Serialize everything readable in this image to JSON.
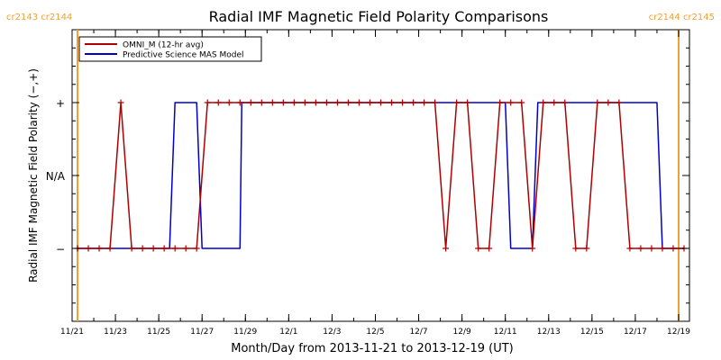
{
  "chart_data": {
    "type": "line",
    "title": "Radial IMF Magnetic Field Polarity Comparisons",
    "xlabel": "Month/Day from 2013-11-21 to 2013-12-19 (UT)",
    "ylabel": "Radial IMF Magnetic Field Polarity (−,+)",
    "xlim": [
      "2013-11-21T00:00",
      "2013-12-19T12:00"
    ],
    "ylim": [
      -2,
      2
    ],
    "x_ticks": [
      "11/21",
      "11/23",
      "11/25",
      "11/27",
      "11/29",
      "12/1",
      "12/3",
      "12/5",
      "12/7",
      "12/9",
      "12/11",
      "12/13",
      "12/15",
      "12/17",
      "12/19"
    ],
    "y_ticks": [
      {
        "value": 1,
        "label": "+"
      },
      {
        "value": 0,
        "label": "N/A"
      },
      {
        "value": -1,
        "label": "−"
      }
    ],
    "grid": false,
    "legend_position": "top-left",
    "rotation_markers": [
      {
        "label": "cr2143 cr2144",
        "x": "2013-11-21T06:00",
        "side": "left",
        "color": "#f0a030"
      },
      {
        "label": "cr2144 cr2145",
        "x": "2013-12-19T00:00",
        "side": "right",
        "color": "#f0a030"
      }
    ],
    "series": [
      {
        "name": "OMNI_M (12-hr avg)",
        "color": "#b00000",
        "marker": "+",
        "x": [
          "2013-11-21T06:00",
          "2013-11-21T18:00",
          "2013-11-22T06:00",
          "2013-11-22T18:00",
          "2013-11-23T06:00",
          "2013-11-23T18:00",
          "2013-11-24T06:00",
          "2013-11-24T18:00",
          "2013-11-25T06:00",
          "2013-11-25T18:00",
          "2013-11-26T06:00",
          "2013-11-26T18:00",
          "2013-11-27T06:00",
          "2013-11-27T18:00",
          "2013-11-28T06:00",
          "2013-11-28T18:00",
          "2013-11-29T06:00",
          "2013-11-29T18:00",
          "2013-11-30T06:00",
          "2013-11-30T18:00",
          "2013-12-01T06:00",
          "2013-12-01T18:00",
          "2013-12-02T06:00",
          "2013-12-02T18:00",
          "2013-12-03T06:00",
          "2013-12-03T18:00",
          "2013-12-04T06:00",
          "2013-12-04T18:00",
          "2013-12-05T06:00",
          "2013-12-05T18:00",
          "2013-12-06T06:00",
          "2013-12-06T18:00",
          "2013-12-07T06:00",
          "2013-12-07T18:00",
          "2013-12-08T06:00",
          "2013-12-08T18:00",
          "2013-12-09T06:00",
          "2013-12-09T18:00",
          "2013-12-10T06:00",
          "2013-12-10T18:00",
          "2013-12-11T06:00",
          "2013-12-11T18:00",
          "2013-12-12T06:00",
          "2013-12-12T18:00",
          "2013-12-13T06:00",
          "2013-12-13T18:00",
          "2013-12-14T06:00",
          "2013-12-14T18:00",
          "2013-12-15T06:00",
          "2013-12-15T18:00",
          "2013-12-16T06:00",
          "2013-12-16T18:00",
          "2013-12-17T06:00",
          "2013-12-17T18:00",
          "2013-12-18T06:00",
          "2013-12-18T18:00",
          "2013-12-19T06:00"
        ],
        "values": [
          -1,
          -1,
          -1,
          -1,
          1,
          -1,
          -1,
          -1,
          -1,
          -1,
          -1,
          -1,
          1,
          1,
          1,
          1,
          1,
          1,
          1,
          1,
          1,
          1,
          1,
          1,
          1,
          1,
          1,
          1,
          1,
          1,
          1,
          1,
          1,
          1,
          -1,
          1,
          1,
          -1,
          -1,
          1,
          1,
          1,
          -1,
          1,
          1,
          1,
          -1,
          -1,
          1,
          1,
          1,
          -1,
          -1,
          -1,
          -1,
          -1,
          -1
        ]
      },
      {
        "name": "Predictive Science MAS Model",
        "color": "#0000cc",
        "marker": "",
        "x": [
          "2013-11-21T06:00",
          "2013-11-25T12:00",
          "2013-11-25T18:00",
          "2013-11-26T18:00",
          "2013-11-27T00:00",
          "2013-11-28T18:00",
          "2013-11-28T20:00",
          "2013-12-11T00:00",
          "2013-12-11T06:00",
          "2013-12-12T06:00",
          "2013-12-12T12:00",
          "2013-12-13T00:00",
          "2013-12-13T06:00",
          "2013-12-18T00:00",
          "2013-12-18T06:00",
          "2013-12-19T06:00"
        ],
        "values": [
          -1,
          -1,
          1,
          1,
          -1,
          -1,
          1,
          1,
          -1,
          -1,
          1,
          1,
          1,
          1,
          -1,
          -1
        ]
      }
    ]
  }
}
